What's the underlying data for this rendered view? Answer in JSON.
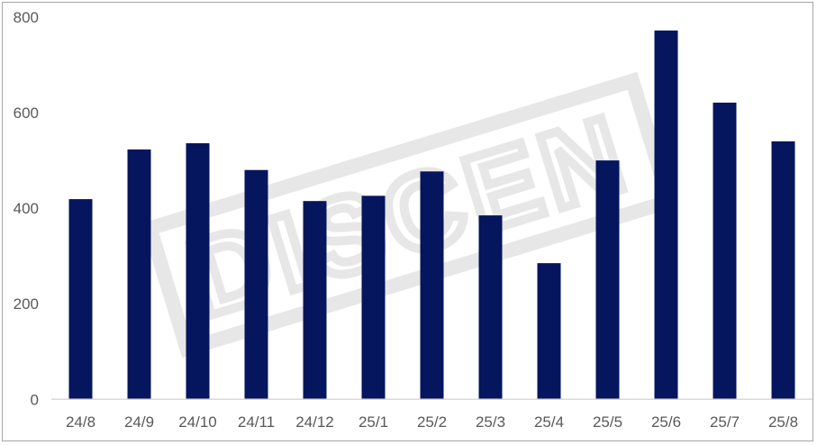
{
  "chart_data": {
    "type": "bar",
    "title": "",
    "xlabel": "",
    "ylabel": "",
    "categories": [
      "24/8",
      "24/9",
      "24/10",
      "24/11",
      "24/12",
      "25/1",
      "25/2",
      "25/3",
      "25/4",
      "25/5",
      "25/6",
      "25/7",
      "25/8"
    ],
    "values": [
      419,
      523,
      536,
      480,
      415,
      426,
      477,
      385,
      285,
      500,
      772,
      621,
      540
    ],
    "ylim": [
      0,
      800
    ],
    "yticks": [
      "0",
      "200",
      "400",
      "600",
      "800"
    ],
    "grid": false,
    "legend": "none",
    "bar_color": "#05155e",
    "watermark": "DISCEN"
  }
}
